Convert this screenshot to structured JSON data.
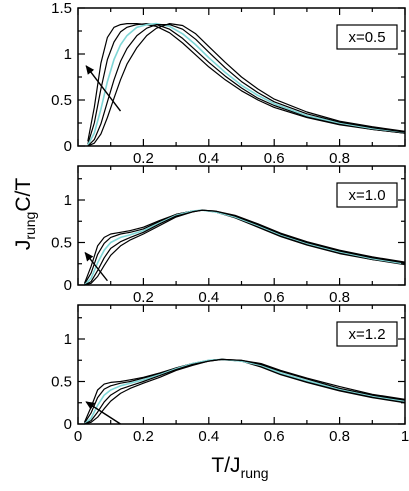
{
  "chart_data": {
    "type": "line",
    "xlabel": "T/J",
    "xlabel_sub": "rung",
    "ylabel": "J",
    "ylabel_sub": "rung",
    "ylabel_rest": "C/T",
    "xlim": [
      0,
      1
    ],
    "x_ticks": [
      "0",
      "0.2",
      "0.4",
      "0.6",
      "0.8",
      "1"
    ],
    "grid": false,
    "panels": [
      {
        "label": "x=0.5",
        "ylim": [
          0,
          1.5
        ],
        "y_ticks": [
          "0",
          "0.5",
          "1",
          "1.5"
        ],
        "x_tick_labels_shown": [
          "0.2",
          "0.4",
          "0.6",
          "0.8"
        ],
        "highlight_index": 2,
        "arrow": {
          "from": [
            0.13,
            0.38
          ],
          "to": [
            0.025,
            0.87
          ]
        },
        "series": [
          {
            "x": [
              0.03,
              0.05,
              0.07,
              0.09,
              0.11,
              0.13,
              0.15,
              0.18,
              0.21,
              0.24,
              0.28,
              0.32,
              0.36,
              0.4,
              0.45,
              0.5,
              0.55,
              0.6,
              0.7,
              0.8,
              0.9,
              1.0
            ],
            "y": [
              0.05,
              0.42,
              0.9,
              1.18,
              1.29,
              1.32,
              1.33,
              1.33,
              1.32,
              1.3,
              1.23,
              1.12,
              0.99,
              0.86,
              0.72,
              0.6,
              0.5,
              0.42,
              0.31,
              0.23,
              0.18,
              0.14
            ]
          },
          {
            "x": [
              0.03,
              0.05,
              0.07,
              0.09,
              0.11,
              0.13,
              0.15,
              0.18,
              0.21,
              0.24,
              0.28,
              0.32,
              0.36,
              0.4,
              0.45,
              0.5,
              0.55,
              0.6,
              0.7,
              0.8,
              0.9,
              1.0
            ],
            "y": [
              0.02,
              0.25,
              0.62,
              0.94,
              1.13,
              1.24,
              1.29,
              1.32,
              1.33,
              1.32,
              1.27,
              1.17,
              1.04,
              0.91,
              0.76,
              0.63,
              0.52,
              0.44,
              0.32,
              0.24,
              0.18,
              0.14
            ]
          },
          {
            "x": [
              0.03,
              0.05,
              0.07,
              0.09,
              0.11,
              0.13,
              0.15,
              0.18,
              0.21,
              0.24,
              0.28,
              0.32,
              0.36,
              0.4,
              0.45,
              0.5,
              0.55,
              0.6,
              0.7,
              0.8,
              0.9,
              1.0
            ],
            "y": [
              0.01,
              0.14,
              0.4,
              0.7,
              0.94,
              1.1,
              1.2,
              1.29,
              1.32,
              1.33,
              1.3,
              1.22,
              1.1,
              0.96,
              0.8,
              0.66,
              0.55,
              0.46,
              0.33,
              0.25,
              0.19,
              0.15
            ]
          },
          {
            "x": [
              0.03,
              0.05,
              0.07,
              0.09,
              0.11,
              0.13,
              0.15,
              0.18,
              0.21,
              0.24,
              0.28,
              0.32,
              0.36,
              0.4,
              0.45,
              0.5,
              0.55,
              0.6,
              0.7,
              0.8,
              0.9,
              1.0
            ],
            "y": [
              0.0,
              0.07,
              0.24,
              0.48,
              0.72,
              0.92,
              1.06,
              1.2,
              1.28,
              1.32,
              1.32,
              1.27,
              1.16,
              1.02,
              0.85,
              0.7,
              0.58,
              0.48,
              0.35,
              0.26,
              0.2,
              0.15
            ]
          },
          {
            "x": [
              0.03,
              0.05,
              0.07,
              0.09,
              0.11,
              0.13,
              0.15,
              0.18,
              0.21,
              0.24,
              0.28,
              0.32,
              0.36,
              0.4,
              0.45,
              0.5,
              0.55,
              0.6,
              0.7,
              0.8,
              0.9,
              1.0
            ],
            "y": [
              0.0,
              0.03,
              0.13,
              0.31,
              0.52,
              0.72,
              0.89,
              1.07,
              1.2,
              1.28,
              1.33,
              1.31,
              1.22,
              1.08,
              0.91,
              0.75,
              0.62,
              0.51,
              0.37,
              0.27,
              0.21,
              0.16
            ]
          }
        ]
      },
      {
        "label": "x=1.0",
        "ylim": [
          0,
          1.4
        ],
        "y_ticks": [
          "0",
          "0.5",
          "1"
        ],
        "x_tick_labels_shown": [
          "0.2",
          "0.4",
          "0.6",
          "0.8"
        ],
        "highlight_index": 2,
        "arrow": {
          "from": [
            0.09,
            0.05
          ],
          "to": [
            0.022,
            0.38
          ]
        },
        "series": [
          {
            "x": [
              0.02,
              0.04,
              0.06,
              0.08,
              0.1,
              0.13,
              0.16,
              0.2,
              0.25,
              0.3,
              0.35,
              0.38,
              0.42,
              0.48,
              0.55,
              0.62,
              0.7,
              0.8,
              0.9,
              1.0
            ],
            "y": [
              0.02,
              0.22,
              0.46,
              0.56,
              0.6,
              0.62,
              0.64,
              0.68,
              0.76,
              0.83,
              0.87,
              0.88,
              0.86,
              0.79,
              0.68,
              0.57,
              0.47,
              0.37,
              0.3,
              0.24
            ]
          },
          {
            "x": [
              0.02,
              0.04,
              0.06,
              0.08,
              0.1,
              0.13,
              0.16,
              0.2,
              0.25,
              0.3,
              0.35,
              0.38,
              0.42,
              0.48,
              0.55,
              0.62,
              0.7,
              0.8,
              0.9,
              1.0
            ],
            "y": [
              0.01,
              0.14,
              0.36,
              0.49,
              0.56,
              0.6,
              0.62,
              0.66,
              0.75,
              0.83,
              0.87,
              0.88,
              0.86,
              0.8,
              0.69,
              0.58,
              0.48,
              0.38,
              0.3,
              0.25
            ]
          },
          {
            "x": [
              0.02,
              0.04,
              0.06,
              0.08,
              0.1,
              0.13,
              0.16,
              0.2,
              0.25,
              0.3,
              0.35,
              0.38,
              0.42,
              0.48,
              0.55,
              0.62,
              0.7,
              0.8,
              0.9,
              1.0
            ],
            "y": [
              0.0,
              0.08,
              0.26,
              0.41,
              0.5,
              0.56,
              0.59,
              0.64,
              0.73,
              0.82,
              0.87,
              0.88,
              0.86,
              0.8,
              0.7,
              0.59,
              0.49,
              0.39,
              0.31,
              0.25
            ]
          },
          {
            "x": [
              0.02,
              0.04,
              0.06,
              0.08,
              0.1,
              0.13,
              0.16,
              0.2,
              0.25,
              0.3,
              0.35,
              0.38,
              0.42,
              0.48,
              0.55,
              0.62,
              0.7,
              0.8,
              0.9,
              1.0
            ],
            "y": [
              0.0,
              0.04,
              0.17,
              0.32,
              0.43,
              0.51,
              0.56,
              0.62,
              0.72,
              0.81,
              0.86,
              0.88,
              0.87,
              0.81,
              0.71,
              0.6,
              0.5,
              0.4,
              0.32,
              0.26
            ]
          },
          {
            "x": [
              0.02,
              0.04,
              0.06,
              0.08,
              0.1,
              0.13,
              0.16,
              0.2,
              0.25,
              0.3,
              0.35,
              0.38,
              0.42,
              0.48,
              0.55,
              0.62,
              0.7,
              0.8,
              0.9,
              1.0
            ],
            "y": [
              0.0,
              0.02,
              0.1,
              0.23,
              0.35,
              0.46,
              0.53,
              0.6,
              0.7,
              0.8,
              0.86,
              0.88,
              0.87,
              0.82,
              0.72,
              0.61,
              0.51,
              0.41,
              0.33,
              0.27
            ]
          }
        ]
      },
      {
        "label": "x=1.2",
        "ylim": [
          0,
          1.4
        ],
        "y_ticks": [
          "0",
          "0.5",
          "1"
        ],
        "x_tick_labels_shown": [
          "0",
          "0.2",
          "0.4",
          "0.6",
          "0.8",
          "1"
        ],
        "highlight_index": 2,
        "arrow": {
          "from": [
            0.13,
            0.0
          ],
          "to": [
            0.025,
            0.26
          ]
        },
        "series": [
          {
            "x": [
              0.02,
              0.04,
              0.06,
              0.08,
              0.1,
              0.13,
              0.16,
              0.2,
              0.25,
              0.3,
              0.35,
              0.4,
              0.44,
              0.5,
              0.56,
              0.62,
              0.7,
              0.8,
              0.9,
              1.0
            ],
            "y": [
              0.02,
              0.2,
              0.4,
              0.47,
              0.49,
              0.5,
              0.52,
              0.55,
              0.6,
              0.66,
              0.71,
              0.75,
              0.76,
              0.74,
              0.67,
              0.58,
              0.49,
              0.39,
              0.31,
              0.25
            ]
          },
          {
            "x": [
              0.02,
              0.04,
              0.06,
              0.08,
              0.1,
              0.13,
              0.16,
              0.2,
              0.25,
              0.3,
              0.35,
              0.4,
              0.44,
              0.5,
              0.56,
              0.62,
              0.7,
              0.8,
              0.9,
              1.0
            ],
            "y": [
              0.01,
              0.13,
              0.31,
              0.41,
              0.45,
              0.48,
              0.5,
              0.54,
              0.59,
              0.66,
              0.71,
              0.75,
              0.76,
              0.74,
              0.68,
              0.59,
              0.5,
              0.4,
              0.32,
              0.26
            ]
          },
          {
            "x": [
              0.02,
              0.04,
              0.06,
              0.08,
              0.1,
              0.13,
              0.16,
              0.2,
              0.25,
              0.3,
              0.35,
              0.4,
              0.44,
              0.5,
              0.56,
              0.62,
              0.7,
              0.8,
              0.9,
              1.0
            ],
            "y": [
              0.0,
              0.07,
              0.22,
              0.34,
              0.4,
              0.45,
              0.48,
              0.52,
              0.58,
              0.65,
              0.71,
              0.75,
              0.76,
              0.74,
              0.69,
              0.6,
              0.51,
              0.41,
              0.33,
              0.27
            ]
          },
          {
            "x": [
              0.02,
              0.04,
              0.06,
              0.08,
              0.1,
              0.13,
              0.16,
              0.2,
              0.25,
              0.3,
              0.35,
              0.4,
              0.44,
              0.5,
              0.56,
              0.62,
              0.7,
              0.8,
              0.9,
              1.0
            ],
            "y": [
              0.0,
              0.04,
              0.14,
              0.26,
              0.34,
              0.41,
              0.45,
              0.5,
              0.57,
              0.64,
              0.7,
              0.74,
              0.76,
              0.75,
              0.7,
              0.62,
              0.53,
              0.42,
              0.34,
              0.28
            ]
          },
          {
            "x": [
              0.02,
              0.04,
              0.06,
              0.08,
              0.1,
              0.13,
              0.16,
              0.2,
              0.25,
              0.3,
              0.35,
              0.4,
              0.44,
              0.5,
              0.56,
              0.62,
              0.7,
              0.8,
              0.9,
              1.0
            ],
            "y": [
              0.0,
              0.02,
              0.08,
              0.18,
              0.27,
              0.36,
              0.42,
              0.48,
              0.55,
              0.63,
              0.69,
              0.74,
              0.76,
              0.75,
              0.71,
              0.63,
              0.54,
              0.44,
              0.35,
              0.29
            ]
          }
        ]
      }
    ]
  },
  "colors": {
    "curve": "#000000",
    "highlight": "#7fd6d6",
    "axis": "#000000"
  }
}
